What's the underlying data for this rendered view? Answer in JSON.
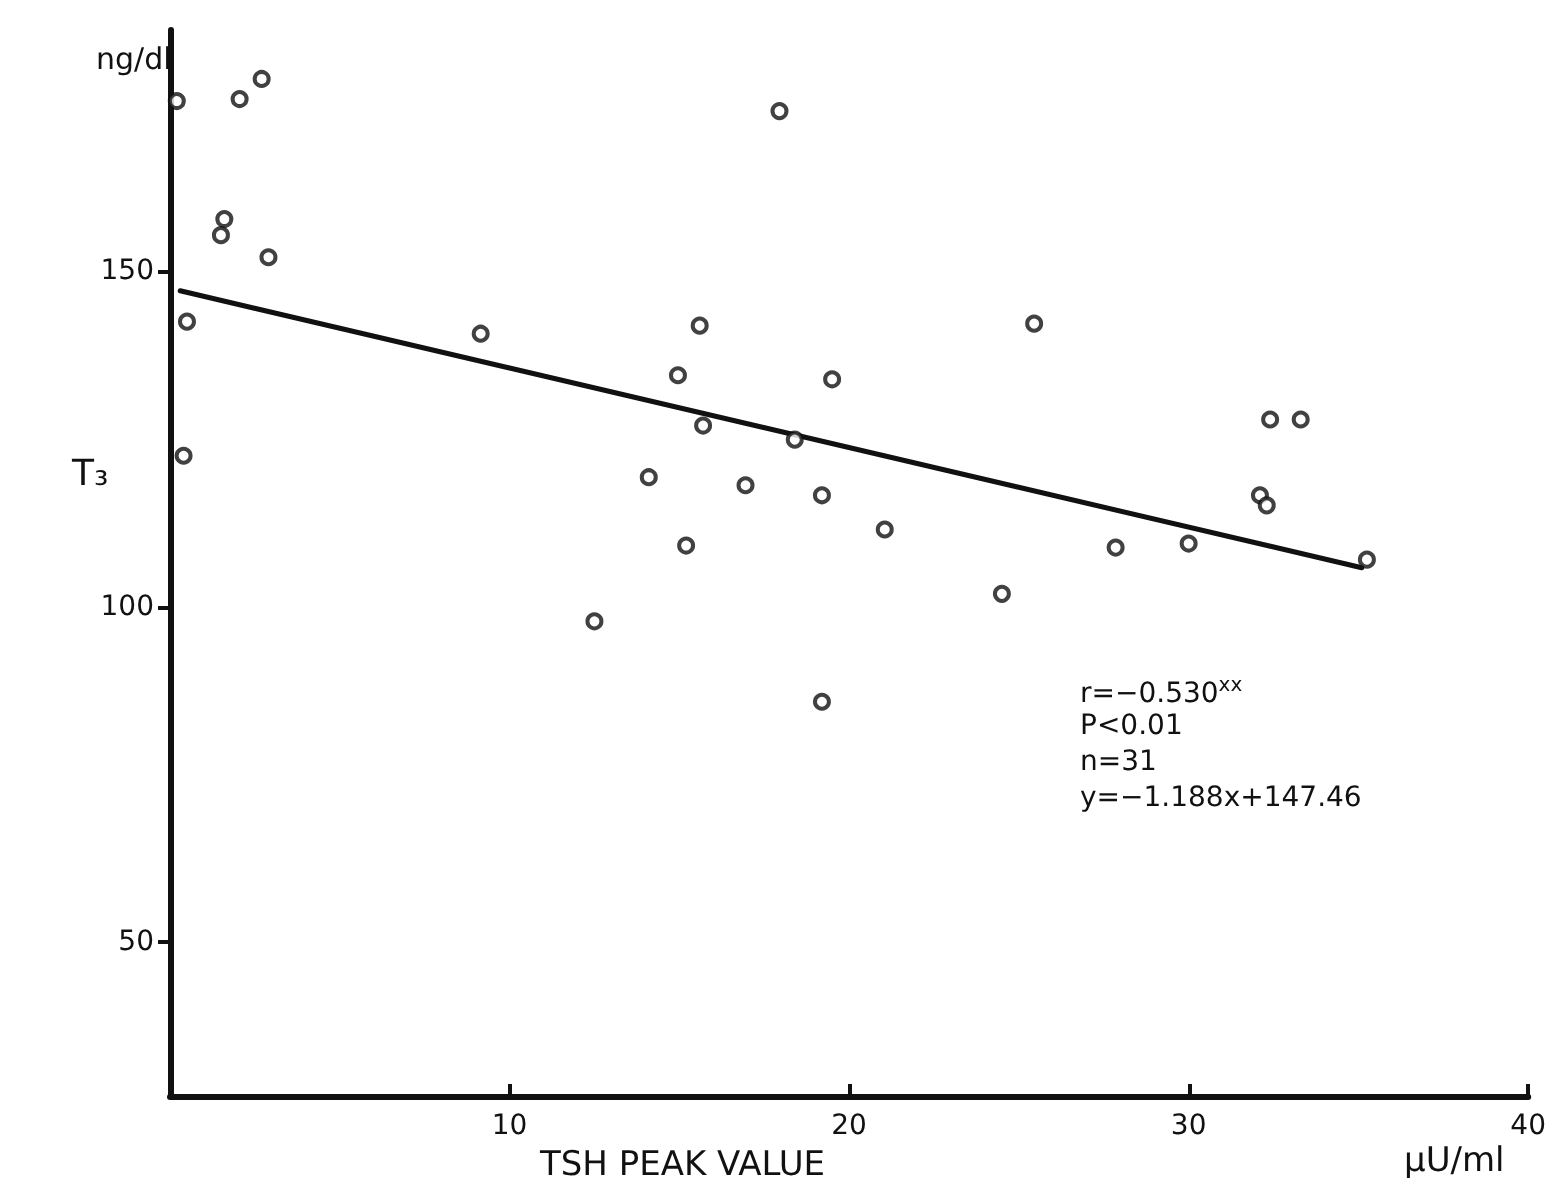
{
  "chart_data": {
    "type": "scatter",
    "xlabel": "TSH PEAK VALUE",
    "ylabel": "T₃",
    "annotations": [
      "ng/dl",
      "μU/ml",
      "r=−0.530$^{xx}$",
      "P<0.01",
      "n=31",
      "y=−1.188x+147.46"
    ],
    "xlim": [
      0,
      40
    ],
    "xticks": [
      10,
      20,
      30,
      40
    ],
    "ylim": [
      27,
      186
    ],
    "yticks": [
      50,
      100,
      150
    ],
    "grid": false,
    "marker": "circle",
    "series": [
      {
        "color": "#111111",
        "x": [
          0.2,
          0.5,
          0.4,
          2.05,
          2.7,
          1.6,
          1.5,
          2.9,
          9.15,
          17.95,
          15.6,
          25.45,
          14.96,
          19.5,
          15.7,
          18.4,
          14.1,
          16.95,
          19.2,
          21.05,
          15.2,
          12.5,
          19.2,
          24.5,
          27.85,
          30.0,
          32.4,
          33.3,
          32.1,
          32.3,
          35.25
        ],
        "values": [
          175.4,
          142.5,
          122.5,
          175.7,
          178.7,
          157.8,
          155.4,
          152.1,
          140.7,
          173.9,
          141.9,
          142.2,
          134.5,
          133.9,
          127.0,
          124.9,
          119.3,
          118.1,
          116.6,
          111.5,
          109.1,
          97.8,
          85.8,
          101.9,
          108.8,
          109.4,
          127.9,
          127.9,
          116.6,
          115.1,
          107.0
        ]
      },
      {
        "type": "line",
        "color": "#111111",
        "marker": "none",
        "line_style": "solid",
        "x": [
          0.3,
          35.1
        ],
        "values": [
          147.1,
          105.8
        ]
      }
    ]
  }
}
